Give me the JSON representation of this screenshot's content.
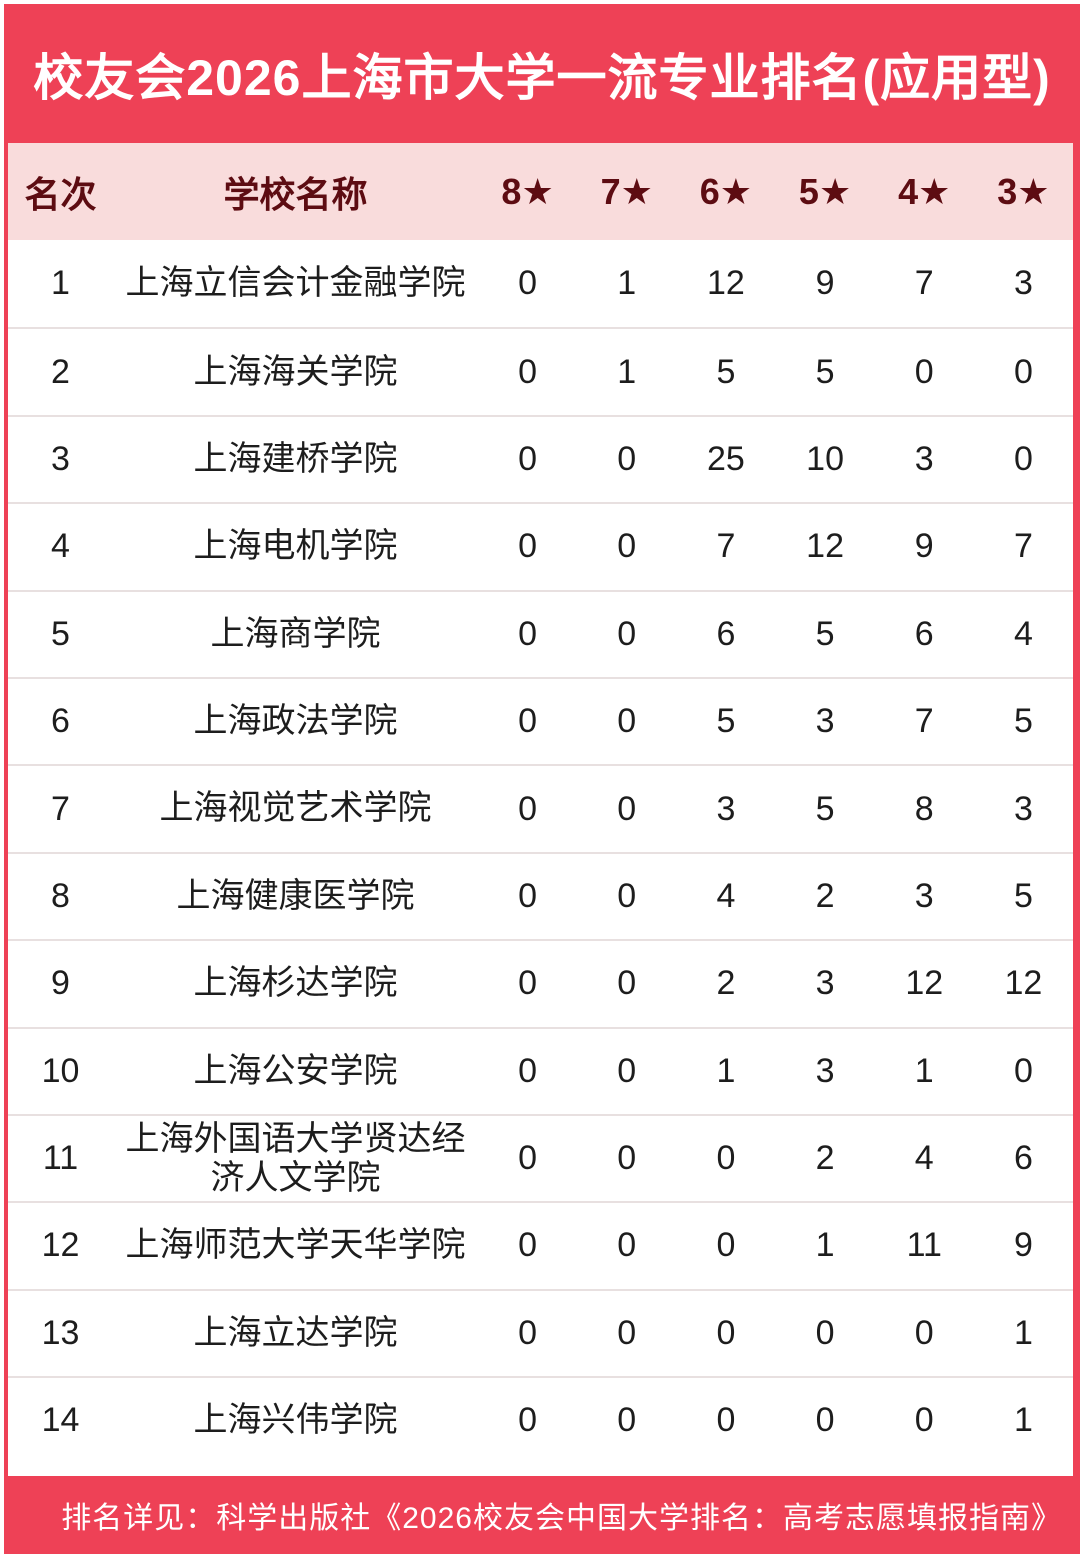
{
  "title": "校友会2026上海市大学一流专业排名(应用型)",
  "colors": {
    "brand_red": "#ee4156",
    "header_background": "#f9dcdc",
    "header_text": "#5d0c12",
    "row_divider": "#e8e0e0"
  },
  "table": {
    "headers": [
      "名次",
      "学校名称",
      "8★",
      "7★",
      "6★",
      "5★",
      "4★",
      "3★"
    ],
    "rows": [
      {
        "rank": "1",
        "school": "上海立信会计金融学院",
        "stars": [
          "0",
          "1",
          "12",
          "9",
          "7",
          "3"
        ]
      },
      {
        "rank": "2",
        "school": "上海海关学院",
        "stars": [
          "0",
          "1",
          "5",
          "5",
          "0",
          "0"
        ]
      },
      {
        "rank": "3",
        "school": "上海建桥学院",
        "stars": [
          "0",
          "0",
          "25",
          "10",
          "3",
          "0"
        ]
      },
      {
        "rank": "4",
        "school": "上海电机学院",
        "stars": [
          "0",
          "0",
          "7",
          "12",
          "9",
          "7"
        ]
      },
      {
        "rank": "5",
        "school": "上海商学院",
        "stars": [
          "0",
          "0",
          "6",
          "5",
          "6",
          "4"
        ]
      },
      {
        "rank": "6",
        "school": "上海政法学院",
        "stars": [
          "0",
          "0",
          "5",
          "3",
          "7",
          "5"
        ]
      },
      {
        "rank": "7",
        "school": "上海视觉艺术学院",
        "stars": [
          "0",
          "0",
          "3",
          "5",
          "8",
          "3"
        ]
      },
      {
        "rank": "8",
        "school": "上海健康医学院",
        "stars": [
          "0",
          "0",
          "4",
          "2",
          "3",
          "5"
        ]
      },
      {
        "rank": "9",
        "school": "上海杉达学院",
        "stars": [
          "0",
          "0",
          "2",
          "3",
          "12",
          "12"
        ]
      },
      {
        "rank": "10",
        "school": "上海公安学院",
        "stars": [
          "0",
          "0",
          "1",
          "3",
          "1",
          "0"
        ]
      },
      {
        "rank": "11",
        "school": "上海外国语大学贤达经济人文学院",
        "stars": [
          "0",
          "0",
          "0",
          "2",
          "4",
          "6"
        ]
      },
      {
        "rank": "12",
        "school": "上海师范大学天华学院",
        "stars": [
          "0",
          "0",
          "0",
          "1",
          "11",
          "9"
        ]
      },
      {
        "rank": "13",
        "school": "上海立达学院",
        "stars": [
          "0",
          "0",
          "0",
          "0",
          "0",
          "1"
        ]
      },
      {
        "rank": "14",
        "school": "上海兴伟学院",
        "stars": [
          "0",
          "0",
          "0",
          "0",
          "0",
          "1"
        ]
      }
    ]
  },
  "footer": "排名详见：科学出版社《2026校友会中国大学排名：高考志愿填报指南》",
  "chart_data": {
    "type": "table",
    "title": "校友会2026上海市大学一流专业排名(应用型)",
    "columns": [
      "名次",
      "学校名称",
      "8★",
      "7★",
      "6★",
      "5★",
      "4★",
      "3★"
    ],
    "rows": [
      [
        "1",
        "上海立信会计金融学院",
        0,
        1,
        12,
        9,
        7,
        3
      ],
      [
        "2",
        "上海海关学院",
        0,
        1,
        5,
        5,
        0,
        0
      ],
      [
        "3",
        "上海建桥学院",
        0,
        0,
        25,
        10,
        3,
        0
      ],
      [
        "4",
        "上海电机学院",
        0,
        0,
        7,
        12,
        9,
        7
      ],
      [
        "5",
        "上海商学院",
        0,
        0,
        6,
        5,
        6,
        4
      ],
      [
        "6",
        "上海政法学院",
        0,
        0,
        5,
        3,
        7,
        5
      ],
      [
        "7",
        "上海视觉艺术学院",
        0,
        0,
        3,
        5,
        8,
        3
      ],
      [
        "8",
        "上海健康医学院",
        0,
        0,
        4,
        2,
        3,
        5
      ],
      [
        "9",
        "上海杉达学院",
        0,
        0,
        2,
        3,
        12,
        12
      ],
      [
        "10",
        "上海公安学院",
        0,
        0,
        1,
        3,
        1,
        0
      ],
      [
        "11",
        "上海外国语大学贤达经济人文学院",
        0,
        0,
        0,
        2,
        4,
        6
      ],
      [
        "12",
        "上海师范大学天华学院",
        0,
        0,
        0,
        1,
        11,
        9
      ],
      [
        "13",
        "上海立达学院",
        0,
        0,
        0,
        0,
        0,
        1
      ],
      [
        "14",
        "上海兴伟学院",
        0,
        0,
        0,
        0,
        0,
        1
      ]
    ],
    "footnote": "排名详见：科学出版社《2026校友会中国大学排名：高考志愿填报指南》"
  }
}
